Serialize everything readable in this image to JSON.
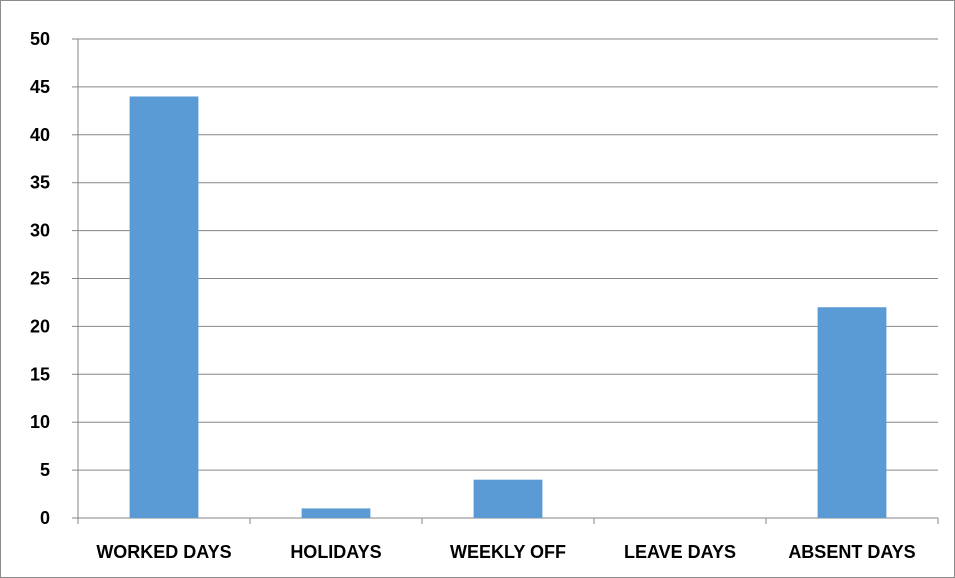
{
  "chart_data": {
    "type": "bar",
    "categories": [
      "WORKED DAYS",
      "HOLIDAYS",
      "WEEKLY OFF",
      "LEAVE DAYS",
      "ABSENT DAYS"
    ],
    "values": [
      44,
      1,
      4,
      0,
      22
    ],
    "title": "",
    "xlabel": "",
    "ylabel": "",
    "ylim": [
      0,
      50
    ],
    "yticks": [
      0,
      5,
      10,
      15,
      20,
      25,
      30,
      35,
      40,
      45,
      50
    ],
    "grid": true,
    "legend": "none",
    "bar_color": "#5b9bd5",
    "grid_color": "#868686"
  }
}
